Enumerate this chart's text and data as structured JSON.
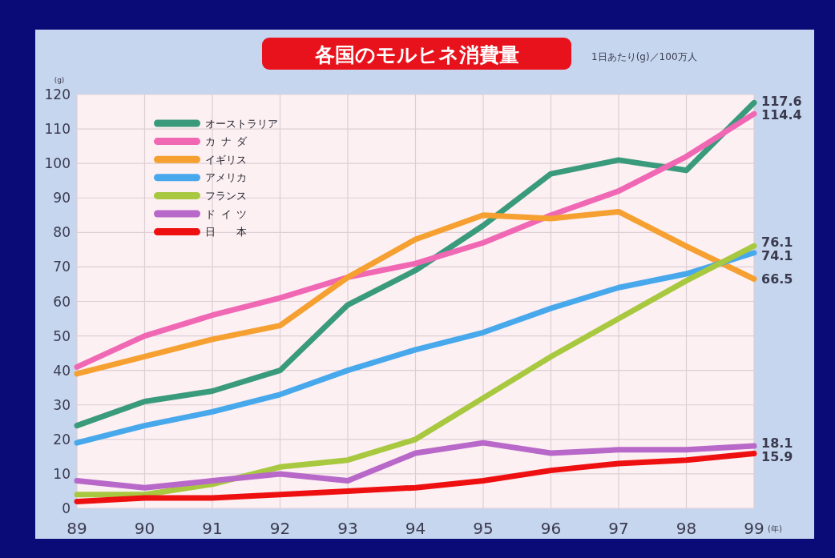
{
  "chart_data": {
    "type": "line",
    "title": "各国のモルヒネ消費量",
    "subtitle": "1日あたり(g)／100万人",
    "xlabel": "(年)",
    "ylabel": "(g)",
    "categories": [
      "89",
      "90",
      "91",
      "92",
      "93",
      "94",
      "95",
      "96",
      "97",
      "98",
      "99"
    ],
    "ylim": [
      0,
      120
    ],
    "yticks": [
      0,
      10,
      20,
      30,
      40,
      50,
      60,
      70,
      80,
      90,
      100,
      110,
      120
    ],
    "grid": true,
    "legend": "top left",
    "series": [
      {
        "name": "オーストラリア",
        "color": "#3a9a7c",
        "values": [
          24,
          31,
          34,
          40,
          59,
          69,
          82,
          97,
          101,
          98,
          117.6
        ],
        "value_labels": [
          null,
          null,
          null,
          null,
          null,
          null,
          null,
          null,
          null,
          null,
          "117.6"
        ]
      },
      {
        "name": "カナダ",
        "color": "#f068b4",
        "values": [
          41,
          50,
          56,
          61,
          67,
          71,
          77,
          85,
          92,
          102,
          114.4
        ],
        "value_labels": [
          null,
          null,
          null,
          null,
          null,
          null,
          null,
          null,
          null,
          null,
          "114.4"
        ]
      },
      {
        "name": "イギリス",
        "color": "#f5a030",
        "values": [
          39,
          44,
          49,
          53,
          67,
          78,
          85,
          84,
          86,
          76,
          66.5
        ],
        "value_labels": [
          null,
          null,
          null,
          null,
          null,
          null,
          null,
          null,
          null,
          null,
          "66.5"
        ]
      },
      {
        "name": "アメリカ",
        "color": "#48a8ec",
        "values": [
          19,
          24,
          28,
          33,
          40,
          46,
          51,
          58,
          64,
          68,
          74.1
        ],
        "value_labels": [
          null,
          null,
          null,
          null,
          null,
          null,
          null,
          null,
          null,
          null,
          "74.1"
        ]
      },
      {
        "name": "フランス",
        "color": "#a8c840",
        "values": [
          4,
          4,
          7,
          12,
          14,
          20,
          32,
          44,
          55,
          66,
          76.1
        ],
        "value_labels": [
          null,
          null,
          null,
          null,
          null,
          null,
          null,
          null,
          null,
          null,
          "76.1"
        ]
      },
      {
        "name": "ドイツ",
        "color": "#b868c8",
        "values": [
          8,
          6,
          8,
          10,
          8,
          16,
          19,
          16,
          17,
          17,
          18.1
        ],
        "value_labels": [
          null,
          null,
          null,
          null,
          null,
          null,
          null,
          null,
          null,
          null,
          "18.1"
        ]
      },
      {
        "name": "日本",
        "color": "#ee1010",
        "values": [
          2,
          3,
          3,
          4,
          5,
          6,
          8,
          11,
          13,
          14,
          15.9
        ],
        "value_labels": [
          null,
          null,
          null,
          null,
          null,
          null,
          null,
          null,
          null,
          null,
          "15.9"
        ]
      }
    ]
  }
}
